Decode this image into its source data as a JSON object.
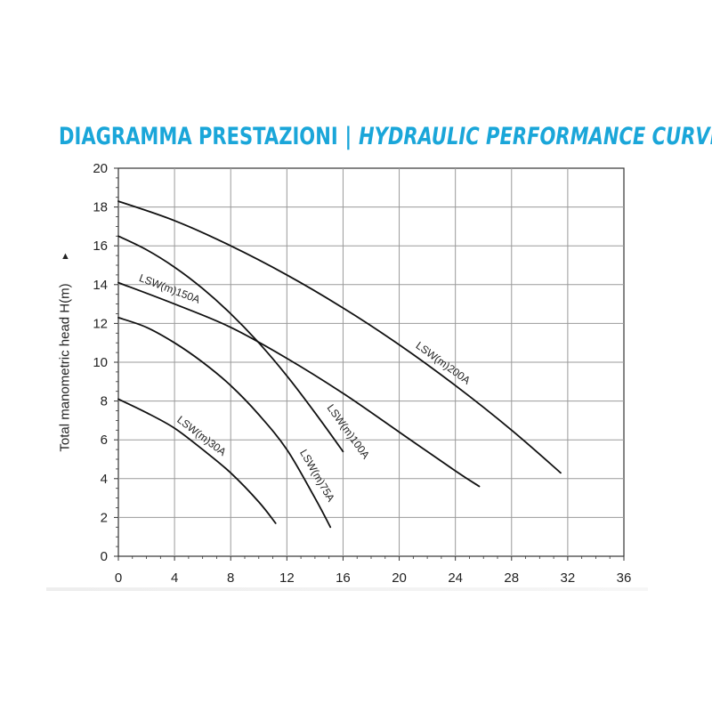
{
  "title": {
    "it": "DIAGRAMMA PRESTAZIONI",
    "sep": "|",
    "en": "HYDRAULIC PERFORMANCE CURVE"
  },
  "colors": {
    "title": "#1aa6d9",
    "curve": "#111111",
    "highlight": "#d42020",
    "grid": "#9a9a9a"
  },
  "chart_data": {
    "type": "line",
    "title": "DIAGRAMMA PRESTAZIONI | HYDRAULIC PERFORMANCE CURVE",
    "xlabel": "",
    "ylabel": "Total manometric head H(m)",
    "xlim": [
      0,
      36
    ],
    "ylim": [
      0,
      20
    ],
    "xticks": [
      0,
      4,
      8,
      12,
      16,
      20,
      24,
      28,
      32,
      36
    ],
    "yticks": [
      0,
      2,
      4,
      6,
      8,
      10,
      12,
      14,
      16,
      18,
      20
    ],
    "grid": true,
    "legend": "inline",
    "series": [
      {
        "name": "LSW(m)30A",
        "highlight": false,
        "x": [
          0,
          2,
          4,
          6,
          8,
          10,
          11.2
        ],
        "y": [
          8.1,
          7.4,
          6.6,
          5.5,
          4.3,
          2.8,
          1.7
        ]
      },
      {
        "name": "LSW(m)75A",
        "highlight": false,
        "x": [
          0,
          2,
          4,
          6,
          8,
          10,
          12,
          14,
          15.1
        ],
        "y": [
          12.3,
          11.8,
          11.0,
          10.0,
          8.8,
          7.3,
          5.5,
          3.0,
          1.5
        ]
      },
      {
        "name": "LSW(m)100A",
        "highlight": true,
        "x": [
          0,
          2,
          4,
          6,
          8,
          10,
          12,
          14,
          16
        ],
        "y": [
          16.5,
          15.8,
          14.9,
          13.8,
          12.5,
          11.0,
          9.3,
          7.4,
          5.4
        ]
      },
      {
        "name": "LSW(m)150A",
        "highlight": false,
        "x": [
          0,
          4,
          8,
          12,
          16,
          20,
          24,
          25.7
        ],
        "y": [
          14.1,
          13.0,
          11.8,
          10.2,
          8.4,
          6.4,
          4.4,
          3.6
        ]
      },
      {
        "name": "LSW(m)200A",
        "highlight": false,
        "x": [
          0,
          4,
          8,
          12,
          16,
          20,
          24,
          28,
          31.5
        ],
        "y": [
          18.3,
          17.3,
          16.0,
          14.5,
          12.8,
          10.9,
          8.8,
          6.5,
          4.3
        ]
      }
    ]
  }
}
